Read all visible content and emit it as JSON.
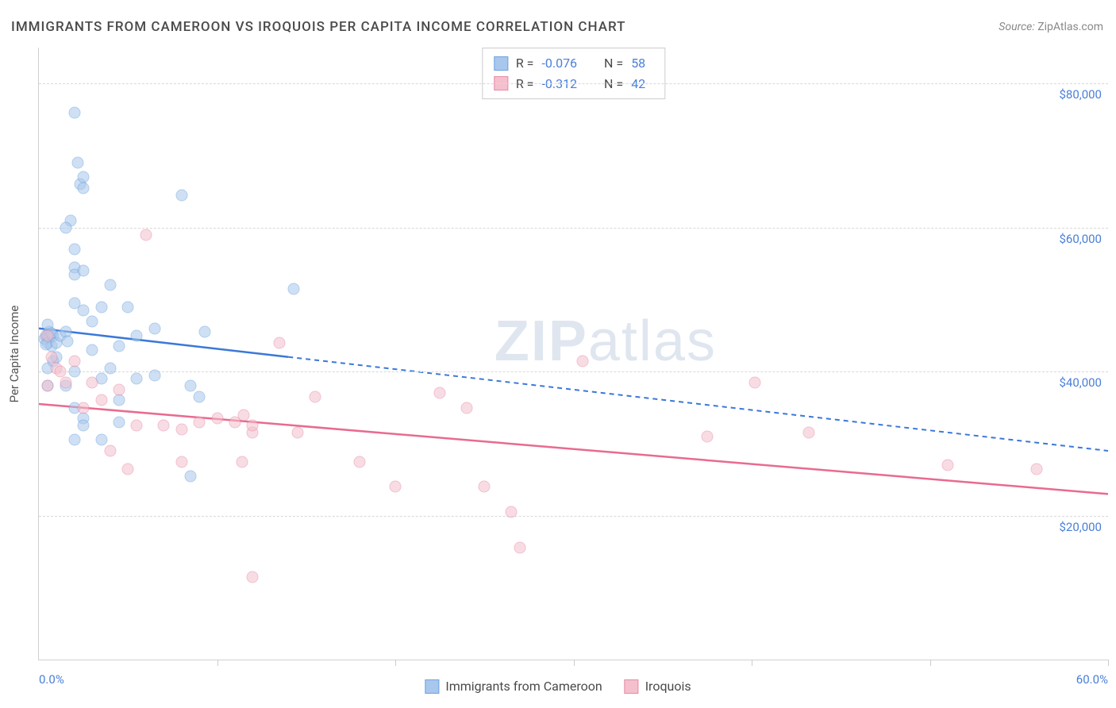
{
  "title": "IMMIGRANTS FROM CAMEROON VS IROQUOIS PER CAPITA INCOME CORRELATION CHART",
  "source_label": "Source:",
  "source_name": "ZipAtlas.com",
  "watermark": {
    "bold": "ZIP",
    "light": "atlas"
  },
  "chart": {
    "type": "scatter",
    "background_color": "#ffffff",
    "grid_color": "#d8d8d8",
    "axis_color": "#d0d0d0",
    "tick_label_color": "#4a7fd8",
    "axis_title_color": "#555555",
    "y_axis_title": "Per Capita Income",
    "xlim": [
      0,
      60
    ],
    "ylim": [
      0,
      85000
    ],
    "y_gridlines": [
      20000,
      40000,
      60000,
      80000
    ],
    "y_tick_labels": [
      "$20,000",
      "$40,000",
      "$60,000",
      "$80,000"
    ],
    "x_ticks": [
      0,
      10,
      20,
      30,
      40,
      50,
      60
    ],
    "x_axis_labels": {
      "left": "0.0%",
      "right": "60.0%"
    },
    "marker_size": 15,
    "marker_opacity": 0.55,
    "series": [
      {
        "name": "Immigrants from Cameroon",
        "color_fill": "#a8c7ec",
        "color_stroke": "#6fa3de",
        "r_value": "-0.076",
        "n_value": "58",
        "trend": {
          "color": "#3b78d8",
          "width": 2.5,
          "solid_until_x": 14,
          "y_at_x0": 46000,
          "y_at_xmax": 29000
        },
        "data": [
          [
            0.3,
            44500
          ],
          [
            0.4,
            45000
          ],
          [
            0.5,
            44000
          ],
          [
            0.6,
            45500
          ],
          [
            0.7,
            43500
          ],
          [
            0.8,
            45000
          ],
          [
            0.5,
            46500
          ],
          [
            0.6,
            44800
          ],
          [
            0.7,
            45300
          ],
          [
            0.4,
            43800
          ],
          [
            2.0,
            76000
          ],
          [
            2.2,
            69000
          ],
          [
            2.3,
            66000
          ],
          [
            2.5,
            67000
          ],
          [
            2.5,
            65500
          ],
          [
            1.8,
            61000
          ],
          [
            1.5,
            60000
          ],
          [
            2.0,
            57000
          ],
          [
            2.0,
            54500
          ],
          [
            2.0,
            53500
          ],
          [
            2.0,
            49500
          ],
          [
            2.5,
            54000
          ],
          [
            2.5,
            48500
          ],
          [
            3.0,
            47000
          ],
          [
            3.5,
            49000
          ],
          [
            4.0,
            52000
          ],
          [
            5.0,
            49000
          ],
          [
            5.5,
            45000
          ],
          [
            6.5,
            46000
          ],
          [
            8.0,
            64500
          ],
          [
            9.3,
            45500
          ],
          [
            14.3,
            51500
          ],
          [
            2.0,
            40000
          ],
          [
            3.0,
            43000
          ],
          [
            4.5,
            43500
          ],
          [
            3.5,
            39000
          ],
          [
            4.0,
            40500
          ],
          [
            5.5,
            39000
          ],
          [
            6.5,
            39500
          ],
          [
            8.5,
            38000
          ],
          [
            9.0,
            36500
          ],
          [
            1.5,
            38000
          ],
          [
            2.0,
            35000
          ],
          [
            2.5,
            33500
          ],
          [
            2.5,
            32500
          ],
          [
            3.5,
            30500
          ],
          [
            4.5,
            36000
          ],
          [
            4.5,
            33000
          ],
          [
            2.0,
            30500
          ],
          [
            0.5,
            40500
          ],
          [
            0.8,
            41500
          ],
          [
            1.0,
            42000
          ],
          [
            1.0,
            44000
          ],
          [
            1.2,
            45000
          ],
          [
            1.5,
            45500
          ],
          [
            1.6,
            44200
          ],
          [
            8.5,
            25500
          ],
          [
            0.5,
            38000
          ]
        ]
      },
      {
        "name": "Iroquois",
        "color_fill": "#f4c0cd",
        "color_stroke": "#e88ba5",
        "r_value": "-0.312",
        "n_value": "42",
        "trend": {
          "color": "#e86b8f",
          "width": 2.5,
          "solid_until_x": 60,
          "y_at_x0": 35500,
          "y_at_xmax": 23000
        },
        "data": [
          [
            0.5,
            45000
          ],
          [
            0.7,
            42000
          ],
          [
            1.0,
            40500
          ],
          [
            1.2,
            40000
          ],
          [
            0.5,
            38000
          ],
          [
            6.0,
            59000
          ],
          [
            13.5,
            44000
          ],
          [
            1.5,
            38500
          ],
          [
            2.0,
            41500
          ],
          [
            3.5,
            36000
          ],
          [
            4.0,
            29000
          ],
          [
            4.5,
            37500
          ],
          [
            5.5,
            32500
          ],
          [
            5.0,
            26500
          ],
          [
            7.0,
            32500
          ],
          [
            8.0,
            32000
          ],
          [
            8.0,
            27500
          ],
          [
            9.0,
            33000
          ],
          [
            10.0,
            33500
          ],
          [
            11.0,
            33000
          ],
          [
            11.4,
            27500
          ],
          [
            11.5,
            34000
          ],
          [
            12.0,
            31500
          ],
          [
            12.0,
            11500
          ],
          [
            12.0,
            32500
          ],
          [
            14.5,
            31500
          ],
          [
            15.5,
            36500
          ],
          [
            18.0,
            27500
          ],
          [
            20.0,
            24000
          ],
          [
            22.5,
            37000
          ],
          [
            24.0,
            35000
          ],
          [
            25.0,
            24000
          ],
          [
            26.5,
            20500
          ],
          [
            27.0,
            15500
          ],
          [
            30.5,
            41500
          ],
          [
            37.5,
            31000
          ],
          [
            40.2,
            38500
          ],
          [
            43.2,
            31500
          ],
          [
            51.0,
            27000
          ],
          [
            56.0,
            26500
          ],
          [
            2.5,
            35000
          ],
          [
            3.0,
            38500
          ]
        ]
      }
    ],
    "stats_legend": {
      "r_label": "R =",
      "n_label": "N ="
    },
    "bottom_legend_items": [
      {
        "label": "Immigrants from Cameroon",
        "fill": "#a8c7ec",
        "stroke": "#6fa3de"
      },
      {
        "label": "Iroquois",
        "fill": "#f4c0cd",
        "stroke": "#e88ba5"
      }
    ]
  }
}
